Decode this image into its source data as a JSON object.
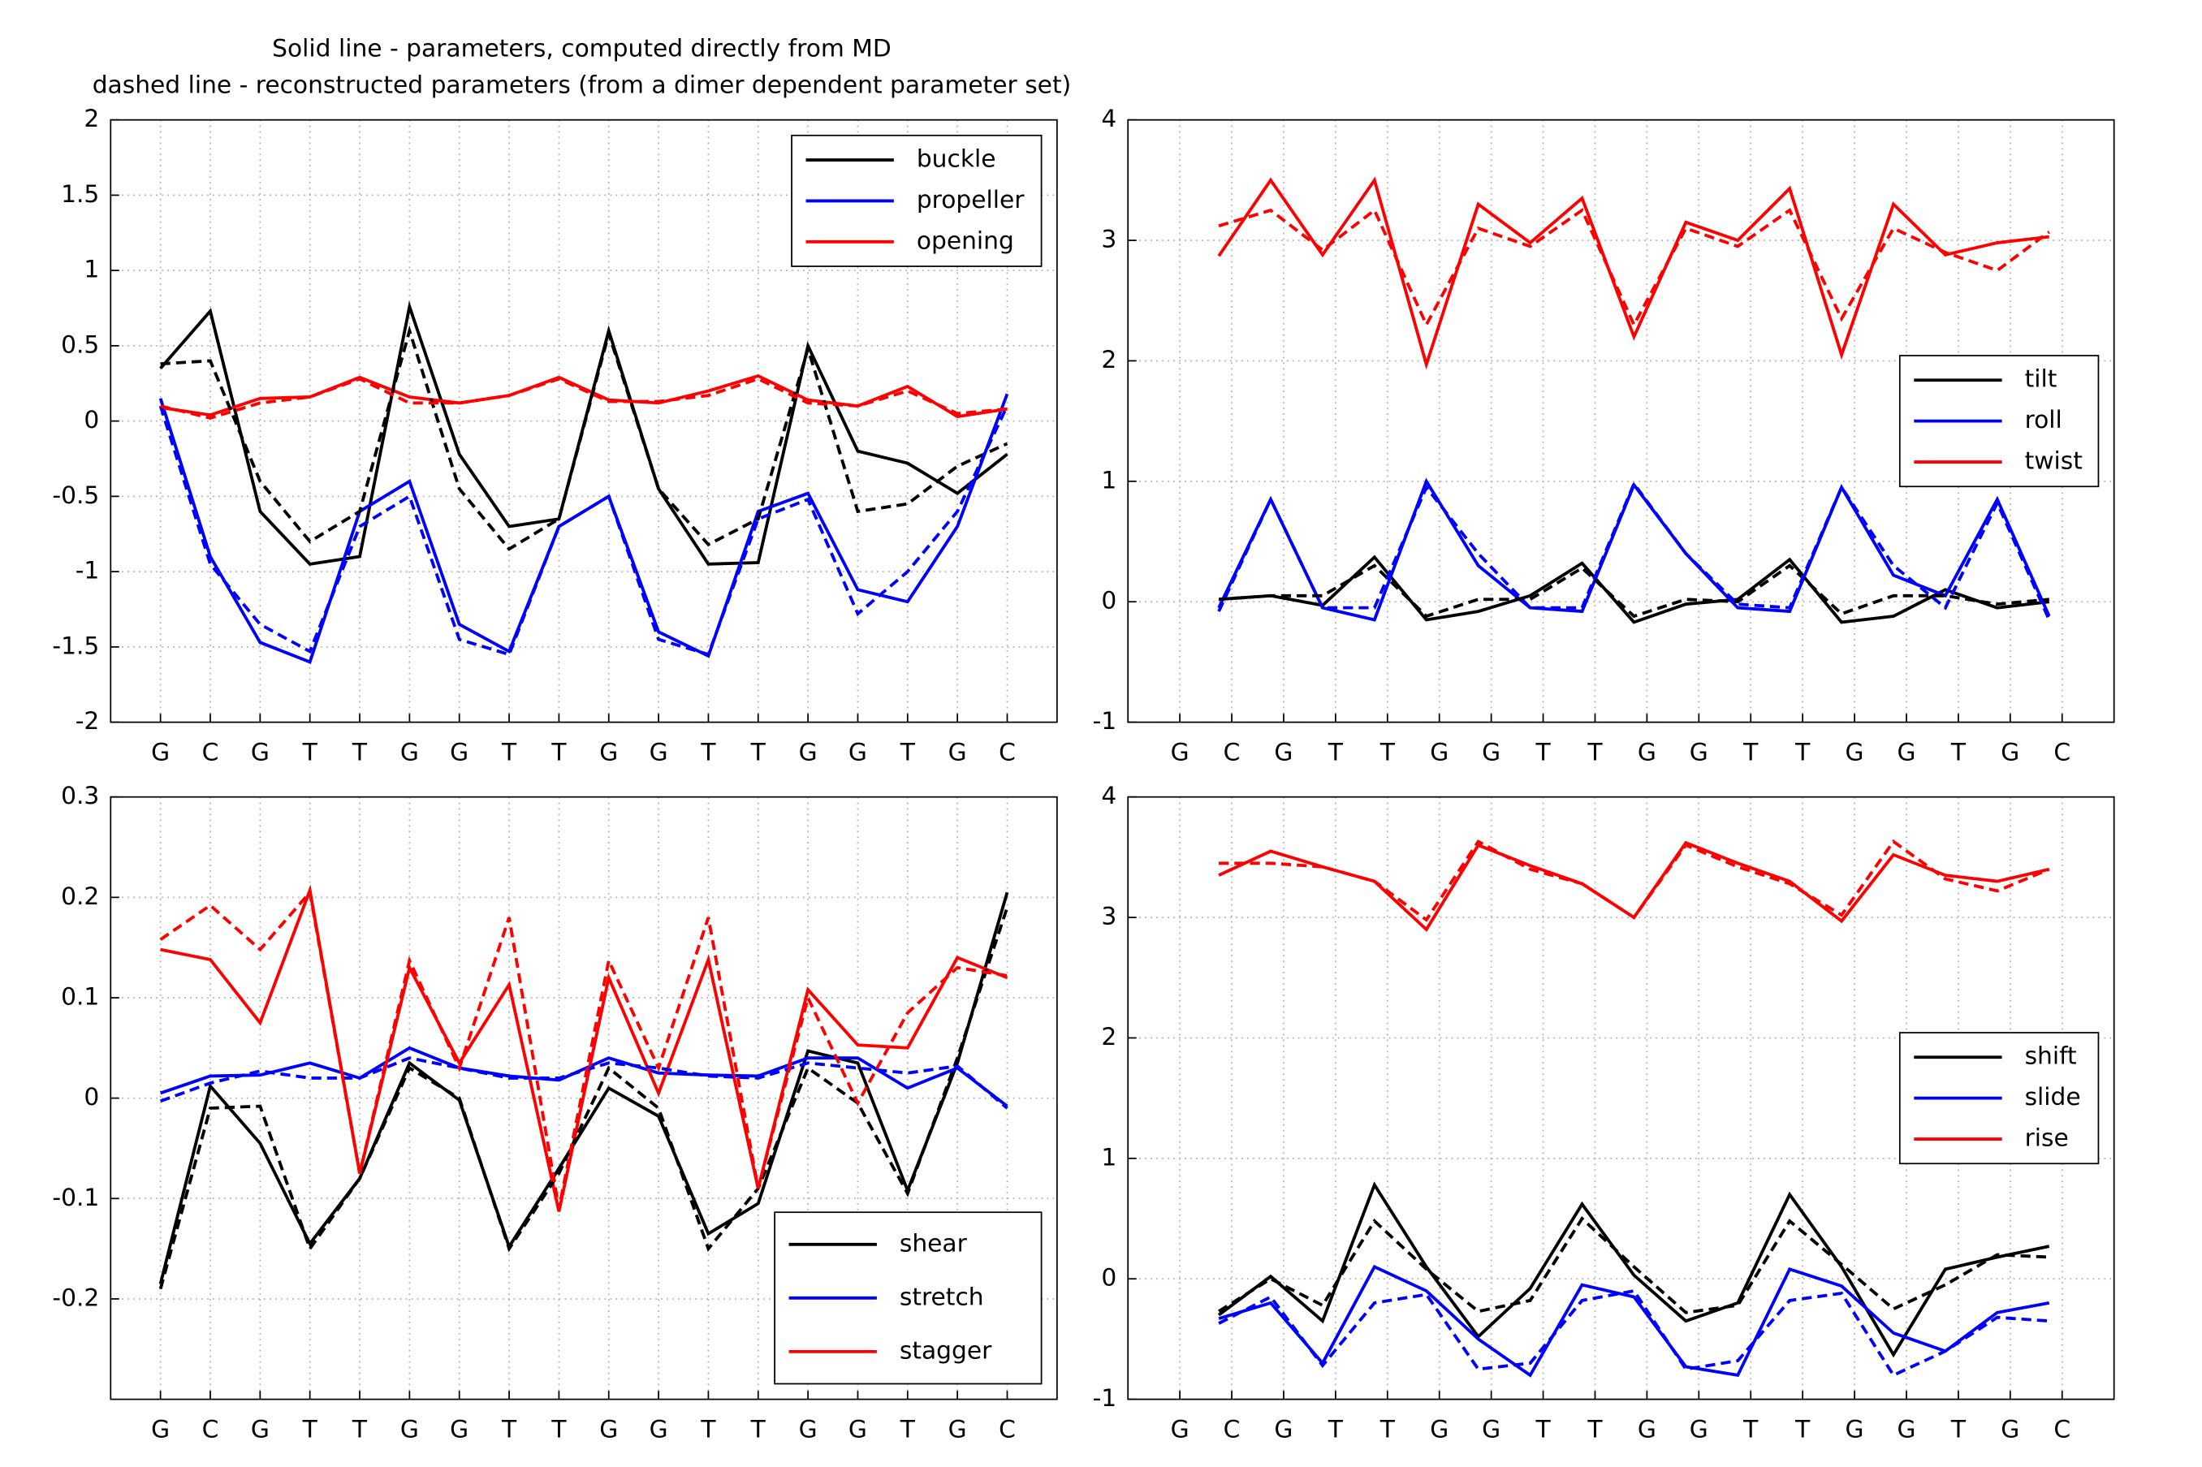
{
  "chart_data": [
    {
      "type": "line",
      "title": "Solid line - parameters, computed directly from MD",
      "subtitle": "dashed line - reconstructed parameters (from a dimer dependent parameter set)",
      "x": [
        1,
        2,
        3,
        4,
        5,
        6,
        7,
        8,
        9,
        10,
        11,
        12,
        13,
        14,
        15,
        16,
        17,
        18
      ],
      "xlim": [
        0,
        19
      ],
      "xticks": [
        {
          "value": 1,
          "label": "G"
        },
        {
          "value": 2,
          "label": "C"
        },
        {
          "value": 3,
          "label": "G"
        },
        {
          "value": 4,
          "label": "T"
        },
        {
          "value": 5,
          "label": "T"
        },
        {
          "value": 6,
          "label": "G"
        },
        {
          "value": 7,
          "label": "G"
        },
        {
          "value": 8,
          "label": "T"
        },
        {
          "value": 9,
          "label": "T"
        },
        {
          "value": 10,
          "label": "G"
        },
        {
          "value": 11,
          "label": "G"
        },
        {
          "value": 12,
          "label": "T"
        },
        {
          "value": 13,
          "label": "T"
        },
        {
          "value": 14,
          "label": "G"
        },
        {
          "value": 15,
          "label": "G"
        },
        {
          "value": 16,
          "label": "T"
        },
        {
          "value": 17,
          "label": "G"
        },
        {
          "value": 18,
          "label": "C"
        }
      ],
      "ylim": [
        -2,
        2
      ],
      "yticks": [
        -2,
        -1.5,
        -1,
        -0.5,
        0,
        0.5,
        1,
        1.5,
        2
      ],
      "grid": true,
      "legend": "upper right",
      "series": [
        {
          "name": "buckle",
          "color": "#000000",
          "values": [
            0.35,
            0.73,
            -0.6,
            -0.95,
            -0.9,
            0.76,
            -0.22,
            -0.7,
            -0.65,
            0.6,
            -0.45,
            -0.95,
            -0.94,
            0.5,
            -0.2,
            -0.28,
            -0.48,
            -0.22
          ]
        },
        {
          "name": "propeller",
          "color": "#0000ff",
          "values": [
            0.15,
            -0.9,
            -1.47,
            -1.6,
            -0.6,
            -0.4,
            -1.35,
            -1.53,
            -0.7,
            -0.5,
            -1.4,
            -1.56,
            -0.6,
            -0.48,
            -1.12,
            -1.2,
            -0.7,
            0.18
          ]
        },
        {
          "name": "opening",
          "color": "#ff0000",
          "values": [
            0.09,
            0.04,
            0.15,
            0.16,
            0.29,
            0.16,
            0.12,
            0.17,
            0.29,
            0.14,
            0.12,
            0.2,
            0.3,
            0.14,
            0.1,
            0.23,
            0.03,
            0.08
          ]
        },
        {
          "color": "#000000",
          "dash": true,
          "values": [
            0.38,
            0.4,
            -0.4,
            -0.8,
            -0.6,
            0.6,
            -0.45,
            -0.85,
            -0.65,
            0.58,
            -0.45,
            -0.82,
            -0.65,
            0.48,
            -0.6,
            -0.55,
            -0.3,
            -0.15
          ]
        },
        {
          "color": "#0000ff",
          "dash": true,
          "values": [
            0.1,
            -0.95,
            -1.35,
            -1.53,
            -0.7,
            -0.5,
            -1.45,
            -1.55,
            -0.7,
            -0.5,
            -1.45,
            -1.55,
            -0.65,
            -0.52,
            -1.28,
            -1.0,
            -0.6,
            0.1
          ]
        },
        {
          "color": "#ff0000",
          "dash": true,
          "values": [
            0.1,
            0.02,
            0.12,
            0.16,
            0.28,
            0.12,
            0.12,
            0.17,
            0.28,
            0.13,
            0.13,
            0.17,
            0.28,
            0.12,
            0.1,
            0.2,
            0.05,
            0.08
          ]
        }
      ]
    },
    {
      "type": "line",
      "x": [
        1.75,
        2.75,
        3.75,
        4.75,
        5.75,
        6.75,
        7.75,
        8.75,
        9.75,
        10.75,
        11.75,
        12.75,
        13.75,
        14.75,
        15.75,
        16.75,
        17.75
      ],
      "xlim": [
        0,
        19
      ],
      "xticks": [
        {
          "value": 1,
          "label": "G"
        },
        {
          "value": 2,
          "label": "C"
        },
        {
          "value": 3,
          "label": "G"
        },
        {
          "value": 4,
          "label": "T"
        },
        {
          "value": 5,
          "label": "T"
        },
        {
          "value": 6,
          "label": "G"
        },
        {
          "value": 7,
          "label": "G"
        },
        {
          "value": 8,
          "label": "T"
        },
        {
          "value": 9,
          "label": "T"
        },
        {
          "value": 10,
          "label": "G"
        },
        {
          "value": 11,
          "label": "G"
        },
        {
          "value": 12,
          "label": "T"
        },
        {
          "value": 13,
          "label": "T"
        },
        {
          "value": 14,
          "label": "G"
        },
        {
          "value": 15,
          "label": "G"
        },
        {
          "value": 16,
          "label": "T"
        },
        {
          "value": 17,
          "label": "G"
        },
        {
          "value": 18,
          "label": "C"
        }
      ],
      "ylim": [
        -1,
        4
      ],
      "yticks": [
        -1,
        0,
        1,
        2,
        3,
        4
      ],
      "grid": true,
      "legend": "right",
      "series": [
        {
          "name": "tilt",
          "color": "#000000",
          "values": [
            0.02,
            0.05,
            -0.03,
            0.37,
            -0.15,
            -0.08,
            0.05,
            0.32,
            -0.17,
            -0.02,
            0.02,
            0.35,
            -0.17,
            -0.12,
            0.1,
            -0.05,
            0.0
          ]
        },
        {
          "name": "roll",
          "color": "#0000ff",
          "values": [
            -0.05,
            0.85,
            -0.05,
            -0.15,
            1.0,
            0.3,
            -0.05,
            -0.08,
            0.97,
            0.4,
            -0.05,
            -0.08,
            0.95,
            0.22,
            0.05,
            0.85,
            -0.12
          ]
        },
        {
          "name": "twist",
          "color": "#ff0000",
          "values": [
            2.87,
            3.5,
            2.88,
            3.5,
            1.97,
            3.3,
            2.98,
            3.35,
            2.2,
            3.15,
            3.0,
            3.43,
            2.05,
            3.3,
            2.88,
            2.98,
            3.03
          ]
        },
        {
          "color": "#000000",
          "dash": true,
          "values": [
            0.02,
            0.05,
            0.05,
            0.3,
            -0.12,
            0.02,
            0.02,
            0.28,
            -0.12,
            0.02,
            0.0,
            0.3,
            -0.1,
            0.05,
            0.05,
            -0.02,
            0.02
          ]
        },
        {
          "color": "#0000ff",
          "dash": true,
          "values": [
            -0.08,
            0.85,
            -0.05,
            -0.05,
            0.95,
            0.4,
            -0.05,
            -0.05,
            0.98,
            0.4,
            -0.02,
            -0.05,
            0.95,
            0.3,
            -0.05,
            0.82,
            -0.15
          ]
        },
        {
          "color": "#ff0000",
          "dash": true,
          "values": [
            3.12,
            3.25,
            2.92,
            3.25,
            2.3,
            3.1,
            2.95,
            3.25,
            2.3,
            3.1,
            2.95,
            3.25,
            2.35,
            3.1,
            2.9,
            2.75,
            3.07
          ]
        }
      ]
    },
    {
      "type": "line",
      "x": [
        1,
        2,
        3,
        4,
        5,
        6,
        7,
        8,
        9,
        10,
        11,
        12,
        13,
        14,
        15,
        16,
        17,
        18
      ],
      "xlim": [
        0,
        19
      ],
      "xticks": [
        {
          "value": 1,
          "label": "G"
        },
        {
          "value": 2,
          "label": "C"
        },
        {
          "value": 3,
          "label": "G"
        },
        {
          "value": 4,
          "label": "T"
        },
        {
          "value": 5,
          "label": "T"
        },
        {
          "value": 6,
          "label": "G"
        },
        {
          "value": 7,
          "label": "G"
        },
        {
          "value": 8,
          "label": "T"
        },
        {
          "value": 9,
          "label": "T"
        },
        {
          "value": 10,
          "label": "G"
        },
        {
          "value": 11,
          "label": "G"
        },
        {
          "value": 12,
          "label": "T"
        },
        {
          "value": 13,
          "label": "T"
        },
        {
          "value": 14,
          "label": "G"
        },
        {
          "value": 15,
          "label": "G"
        },
        {
          "value": 16,
          "label": "T"
        },
        {
          "value": 17,
          "label": "G"
        },
        {
          "value": 18,
          "label": "C"
        }
      ],
      "ylim": [
        -0.3,
        0.3
      ],
      "yticks": [
        -0.2,
        -0.1,
        0,
        0.1,
        0.2,
        0.3
      ],
      "grid": true,
      "legend": "lower right",
      "series": [
        {
          "name": "shear",
          "color": "#000000",
          "values": [
            -0.185,
            0.012,
            -0.045,
            -0.145,
            -0.08,
            0.035,
            -0.002,
            -0.148,
            -0.07,
            0.01,
            -0.018,
            -0.135,
            -0.105,
            0.047,
            0.035,
            -0.092,
            0.035,
            0.205
          ]
        },
        {
          "name": "stretch",
          "color": "#0000ff",
          "values": [
            0.005,
            0.022,
            0.023,
            0.035,
            0.02,
            0.05,
            0.03,
            0.022,
            0.018,
            0.04,
            0.025,
            0.023,
            0.022,
            0.04,
            0.04,
            0.01,
            0.03,
            -0.008
          ]
        },
        {
          "name": "stagger",
          "color": "#ff0000",
          "values": [
            0.148,
            0.138,
            0.075,
            0.207,
            -0.075,
            0.13,
            0.035,
            0.113,
            -0.113,
            0.12,
            0.005,
            0.138,
            -0.09,
            0.108,
            0.053,
            0.05,
            0.14,
            0.12
          ]
        },
        {
          "color": "#000000",
          "dash": true,
          "values": [
            -0.19,
            -0.01,
            -0.008,
            -0.15,
            -0.08,
            0.03,
            0.0,
            -0.15,
            -0.075,
            0.03,
            -0.01,
            -0.15,
            -0.09,
            0.03,
            -0.005,
            -0.095,
            0.04,
            0.19
          ]
        },
        {
          "color": "#0000ff",
          "dash": true,
          "values": [
            -0.003,
            0.015,
            0.027,
            0.02,
            0.02,
            0.04,
            0.03,
            0.02,
            0.02,
            0.035,
            0.03,
            0.022,
            0.02,
            0.035,
            0.03,
            0.025,
            0.032,
            -0.01
          ]
        },
        {
          "color": "#ff0000",
          "dash": true,
          "values": [
            0.158,
            0.192,
            0.148,
            0.205,
            -0.075,
            0.137,
            0.03,
            0.18,
            -0.11,
            0.137,
            0.03,
            0.18,
            -0.09,
            0.1,
            -0.005,
            0.085,
            0.13,
            0.122
          ]
        }
      ]
    },
    {
      "type": "line",
      "x": [
        1.75,
        2.75,
        3.75,
        4.75,
        5.75,
        6.75,
        7.75,
        8.75,
        9.75,
        10.75,
        11.75,
        12.75,
        13.75,
        14.75,
        15.75,
        16.75,
        17.75
      ],
      "xlim": [
        0,
        19
      ],
      "xticks": [
        {
          "value": 1,
          "label": "G"
        },
        {
          "value": 2,
          "label": "C"
        },
        {
          "value": 3,
          "label": "G"
        },
        {
          "value": 4,
          "label": "T"
        },
        {
          "value": 5,
          "label": "T"
        },
        {
          "value": 6,
          "label": "G"
        },
        {
          "value": 7,
          "label": "G"
        },
        {
          "value": 8,
          "label": "T"
        },
        {
          "value": 9,
          "label": "T"
        },
        {
          "value": 10,
          "label": "G"
        },
        {
          "value": 11,
          "label": "G"
        },
        {
          "value": 12,
          "label": "T"
        },
        {
          "value": 13,
          "label": "T"
        },
        {
          "value": 14,
          "label": "G"
        },
        {
          "value": 15,
          "label": "G"
        },
        {
          "value": 16,
          "label": "T"
        },
        {
          "value": 17,
          "label": "G"
        },
        {
          "value": 18,
          "label": "C"
        }
      ],
      "ylim": [
        -1,
        4
      ],
      "yticks": [
        -1,
        0,
        1,
        2,
        3,
        4
      ],
      "grid": true,
      "legend": "right",
      "series": [
        {
          "name": "shift",
          "color": "#000000",
          "values": [
            -0.3,
            0.02,
            -0.35,
            0.78,
            0.1,
            -0.48,
            -0.08,
            0.62,
            0.03,
            -0.35,
            -0.2,
            0.7,
            0.1,
            -0.63,
            0.08,
            0.18,
            0.27
          ]
        },
        {
          "name": "slide",
          "color": "#0000ff",
          "values": [
            -0.33,
            -0.2,
            -0.7,
            0.1,
            -0.1,
            -0.5,
            -0.8,
            -0.05,
            -0.15,
            -0.73,
            -0.8,
            0.08,
            -0.06,
            -0.45,
            -0.6,
            -0.28,
            -0.2
          ]
        },
        {
          "name": "rise",
          "color": "#ff0000",
          "values": [
            3.35,
            3.55,
            3.42,
            3.3,
            2.9,
            3.6,
            3.43,
            3.28,
            3.0,
            3.62,
            3.45,
            3.3,
            2.97,
            3.52,
            3.35,
            3.3,
            3.4
          ]
        },
        {
          "color": "#000000",
          "dash": true,
          "values": [
            -0.27,
            0.0,
            -0.22,
            0.48,
            0.08,
            -0.27,
            -0.18,
            0.5,
            0.1,
            -0.28,
            -0.22,
            0.48,
            0.12,
            -0.25,
            -0.05,
            0.2,
            0.18
          ]
        },
        {
          "color": "#0000ff",
          "dash": true,
          "values": [
            -0.37,
            -0.15,
            -0.72,
            -0.2,
            -0.13,
            -0.75,
            -0.7,
            -0.18,
            -0.1,
            -0.75,
            -0.68,
            -0.18,
            -0.12,
            -0.8,
            -0.6,
            -0.32,
            -0.35
          ]
        },
        {
          "color": "#ff0000",
          "dash": true,
          "values": [
            3.45,
            3.45,
            3.42,
            3.3,
            2.98,
            3.63,
            3.4,
            3.28,
            3.0,
            3.6,
            3.42,
            3.28,
            3.02,
            3.63,
            3.32,
            3.22,
            3.4
          ]
        }
      ]
    }
  ]
}
